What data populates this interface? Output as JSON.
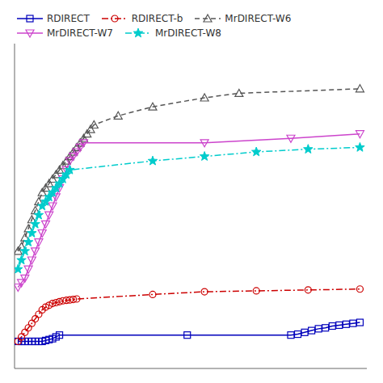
{
  "chart_data": {
    "type": "line",
    "series": [
      {
        "name": "RDIRECT",
        "color": "#0000bb",
        "line_style": "solid",
        "marker": "square",
        "x": [
          1,
          2,
          3,
          4,
          5,
          6,
          7,
          8,
          9,
          10,
          11,
          12,
          13,
          50,
          80,
          82,
          84,
          86,
          88,
          90,
          92,
          94,
          96,
          98,
          100
        ],
        "values": [
          2,
          2,
          2,
          2,
          2,
          2,
          2,
          2,
          2.1,
          2.2,
          2.3,
          2.5,
          2.7,
          2.7,
          2.7,
          2.8,
          3.0,
          3.2,
          3.4,
          3.5,
          3.7,
          3.8,
          3.9,
          4.0,
          4.1
        ]
      },
      {
        "name": "RDIRECT-b",
        "color": "#cc0000",
        "line_style": "dashdot",
        "marker": "circle",
        "x": [
          1,
          2,
          3,
          4,
          5,
          6,
          7,
          8,
          9,
          10,
          11,
          12,
          13,
          14,
          15,
          16,
          17,
          18,
          40,
          55,
          70,
          85,
          100
        ],
        "values": [
          2,
          2.5,
          3.0,
          3.5,
          4.0,
          4.5,
          5.0,
          5.5,
          5.8,
          6.0,
          6.2,
          6.3,
          6.4,
          6.5,
          6.55,
          6.6,
          6.65,
          6.7,
          7.2,
          7.5,
          7.6,
          7.7,
          7.8
        ]
      },
      {
        "name": "MrDIRECT-W6",
        "color": "#555555",
        "line_style": "dashed",
        "marker": "triangle-up",
        "x": [
          1,
          2,
          3,
          4,
          5,
          6,
          7,
          8,
          9,
          10,
          11,
          12,
          13,
          14,
          15,
          16,
          17,
          18,
          19,
          20,
          21,
          22,
          23,
          30,
          40,
          55,
          65,
          100
        ],
        "values": [
          12,
          12.5,
          13.5,
          14.5,
          15.5,
          16.5,
          17.5,
          18.5,
          19,
          19.5,
          20,
          20.5,
          21,
          21.5,
          22,
          22.5,
          23,
          23.5,
          24,
          24.5,
          25,
          25.5,
          26,
          27,
          28,
          29,
          29.5,
          30
        ]
      },
      {
        "name": "MrDIRECT-W7",
        "color": "#cc44cc",
        "line_style": "solid",
        "marker": "triangle-down",
        "x": [
          1,
          2,
          3,
          4,
          5,
          6,
          7,
          8,
          9,
          10,
          11,
          12,
          13,
          14,
          15,
          16,
          17,
          18,
          19,
          20,
          55,
          80,
          100
        ],
        "values": [
          8,
          8.5,
          9,
          10,
          11,
          12,
          13,
          14,
          15,
          16,
          17,
          18,
          19,
          20,
          21,
          22,
          22.5,
          23,
          23.5,
          24,
          24,
          24.5,
          25
        ]
      },
      {
        "name": "MrDIRECT-W8",
        "color": "#00cccc",
        "line_style": "dashdot",
        "marker": "star",
        "x": [
          1,
          2,
          3,
          4,
          5,
          6,
          7,
          8,
          9,
          10,
          11,
          12,
          13,
          14,
          15,
          16,
          40,
          55,
          70,
          85,
          100
        ],
        "values": [
          10,
          11,
          12,
          13,
          14,
          15,
          16,
          17,
          17.5,
          18,
          18.5,
          19,
          19.5,
          20,
          20.5,
          21,
          22,
          22.5,
          23,
          23.3,
          23.5
        ]
      }
    ],
    "xlim": [
      0,
      102
    ],
    "ylim": [
      -1,
      35
    ],
    "tick_labels": false,
    "grid": false,
    "legend": "upper left"
  }
}
